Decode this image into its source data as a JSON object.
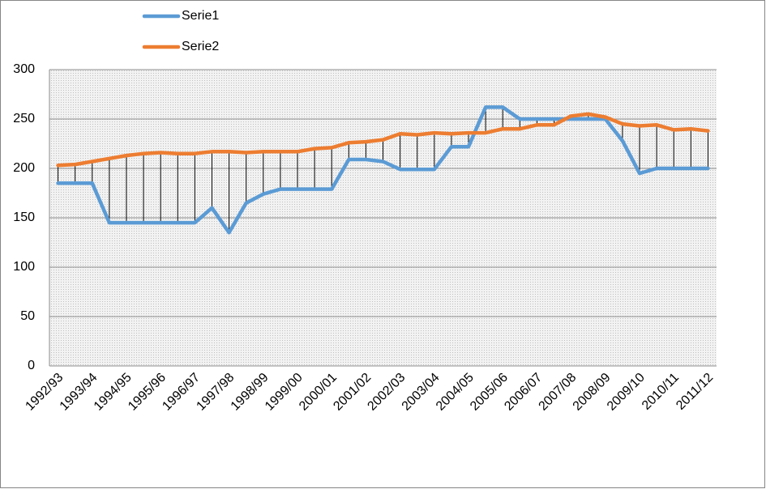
{
  "chart_data": {
    "type": "line",
    "categories": [
      "1992/93",
      null,
      "1993/94",
      null,
      "1994/95",
      null,
      "1995/96",
      null,
      "1996/97",
      null,
      "1997/98",
      null,
      "1998/99",
      null,
      "1999/00",
      null,
      "2000/01",
      null,
      "2001/02",
      null,
      "2002/03",
      null,
      "2003/04",
      null,
      "2004/05",
      null,
      "2005/06",
      null,
      "2006/07",
      null,
      "2007/08",
      null,
      "2008/09",
      null,
      "2009/10",
      null,
      "2010/11",
      null,
      "2011/12"
    ],
    "series": [
      {
        "name": "Serie1",
        "color": "#5b9bd5",
        "values": [
          185,
          185,
          185,
          145,
          145,
          145,
          145,
          145,
          145,
          160,
          135,
          165,
          174,
          179,
          179,
          179,
          179,
          209,
          209,
          207,
          199,
          199,
          199,
          222,
          222,
          262,
          262,
          250,
          250,
          250,
          250,
          250,
          250,
          228,
          195,
          200,
          200,
          200,
          200
        ]
      },
      {
        "name": "Serie2",
        "color": "#ed7d31",
        "values": [
          203,
          204,
          207,
          210,
          213,
          215,
          216,
          215,
          215,
          217,
          217,
          216,
          217,
          217,
          217,
          220,
          221,
          226,
          227,
          229,
          235,
          234,
          236,
          235,
          236,
          236,
          240,
          240,
          244,
          244,
          253,
          255,
          252,
          245,
          243,
          244,
          239,
          240,
          238
        ]
      }
    ],
    "ylim": [
      0,
      300
    ],
    "yticks": [
      0,
      50,
      100,
      150,
      200,
      250,
      300
    ],
    "grid": true,
    "legend": "top",
    "high_low_lines": true
  }
}
